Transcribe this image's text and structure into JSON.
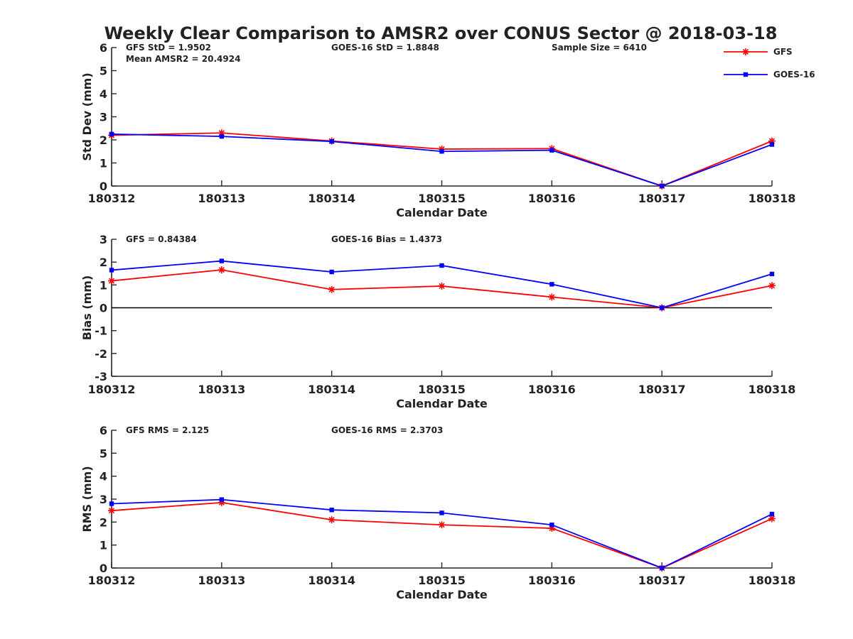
{
  "chart_data": {
    "title": "Weekly Clear Comparison to AMSR2 over CONUS Sector @ 2018-03-18",
    "categories": [
      "180312",
      "180313",
      "180314",
      "180315",
      "180316",
      "180317",
      "180318"
    ],
    "legend": {
      "placement": "top-right",
      "entries": [
        {
          "name": "GFS",
          "color": "#ff0000",
          "marker": "asterisk"
        },
        {
          "name": "GOES-16",
          "color": "#0000ff",
          "marker": "square"
        }
      ]
    },
    "panels": [
      {
        "type": "line",
        "xlabel": "Calendar Date",
        "ylabel": "Std Dev (mm)",
        "ylim": [
          0,
          6
        ],
        "yticks": [
          "0",
          "1",
          "2",
          "3",
          "4",
          "5",
          "6"
        ],
        "zero_line": false,
        "annotations": {
          "gfs": "GFS StD = 1.9502",
          "goes": "GOES-16 StD = 1.8848",
          "extra": "Mean AMSR2 = 20.4924",
          "sample": "Sample Size = 6410"
        },
        "series": [
          {
            "name": "GFS",
            "values": [
              2.2,
              2.3,
              1.95,
              1.6,
              1.62,
              0.0,
              1.95
            ]
          },
          {
            "name": "GOES-16",
            "values": [
              2.25,
              2.15,
              1.93,
              1.5,
              1.55,
              0.0,
              1.8
            ]
          }
        ]
      },
      {
        "type": "line",
        "xlabel": "Calendar Date",
        "ylabel": "Bias (mm)",
        "ylim": [
          -3,
          3
        ],
        "yticks": [
          "-3",
          "-2",
          "-1",
          "0",
          "1",
          "2",
          "3"
        ],
        "zero_line": true,
        "annotations": {
          "gfs": "GFS = 0.84384",
          "goes": "GOES-16 Bias  = 1.4373"
        },
        "series": [
          {
            "name": "GFS",
            "values": [
              1.18,
              1.66,
              0.8,
              0.95,
              0.47,
              0.0,
              0.97
            ]
          },
          {
            "name": "GOES-16",
            "values": [
              1.65,
              2.05,
              1.57,
              1.85,
              1.03,
              0.0,
              1.48
            ]
          }
        ]
      },
      {
        "type": "line",
        "xlabel": "Calendar Date",
        "ylabel": "RMS (mm)",
        "ylim": [
          0,
          6
        ],
        "yticks": [
          "0",
          "1",
          "2",
          "3",
          "4",
          "5",
          "6"
        ],
        "zero_line": false,
        "annotations": {
          "gfs": "GFS RMS = 2.125",
          "goes": "GOES-16 RMS = 2.3703"
        },
        "series": [
          {
            "name": "GFS",
            "values": [
              2.5,
              2.85,
              2.1,
              1.88,
              1.73,
              0.0,
              2.15
            ]
          },
          {
            "name": "GOES-16",
            "values": [
              2.8,
              2.98,
              2.53,
              2.4,
              1.88,
              0.0,
              2.35
            ]
          }
        ]
      }
    ]
  }
}
